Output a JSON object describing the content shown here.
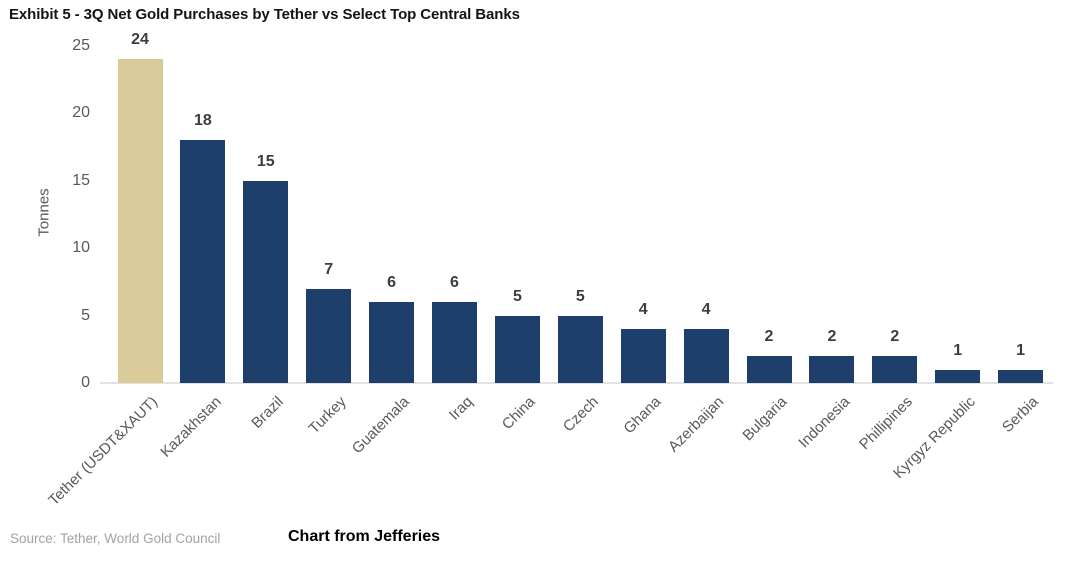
{
  "chart_data": {
    "type": "bar",
    "title": "Exhibit 5 - 3Q Net Gold Purchases by Tether vs Select Top Central Banks",
    "ylabel": "Tonnes",
    "xlabel": "",
    "categories": [
      "Tether (USDT&XAUT)",
      "Kazakhstan",
      "Brazil",
      "Turkey",
      "Guatemala",
      "Iraq",
      "China",
      "Czech",
      "Ghana",
      "Azerbaijan",
      "Bulgaria",
      "Indonesia",
      "Phillipines",
      "Kyrgyz Republic",
      "Serbia"
    ],
    "values": [
      24,
      18,
      15,
      7,
      6,
      6,
      5,
      5,
      4,
      4,
      2,
      2,
      2,
      1,
      1
    ],
    "ylim": [
      0,
      25
    ],
    "yticks": [
      0,
      5,
      10,
      15,
      20,
      25
    ],
    "grid": false,
    "legend": false,
    "value_labels_shown": true,
    "bar_color": "#1E3E6B",
    "highlight_color": "#D9CA99",
    "highlight_index": 0,
    "axis_text_color": "#595959",
    "value_label_color": "#3d3d3d"
  },
  "footer": {
    "source": "Source: Tether, World Gold Council",
    "attribution": "Chart from Jefferies"
  }
}
